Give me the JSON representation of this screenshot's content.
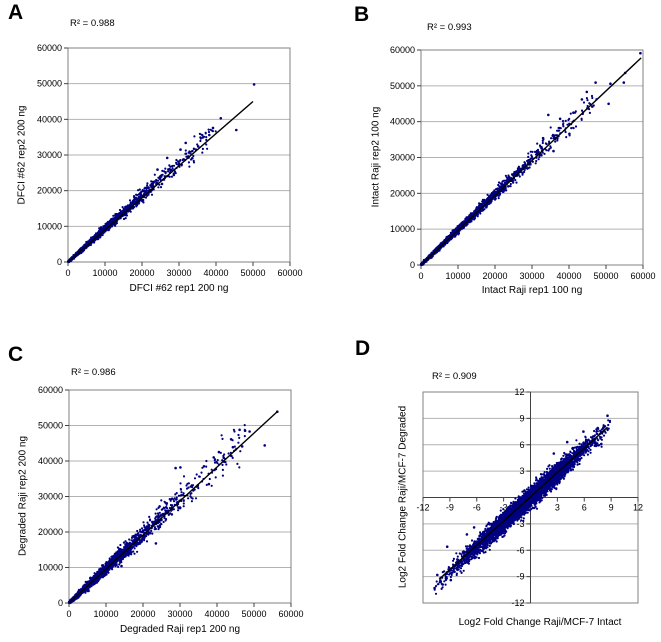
{
  "figure": {
    "background": "#ffffff",
    "point_color": "#000080",
    "grid_color": "#b2b2b2",
    "border_color": "#808080",
    "axis_color": "#404040",
    "trend_color": "#000000"
  },
  "panels": [
    {
      "letter": "A",
      "r2": "R² = 0.988",
      "x_title": "DFCI #62 rep1 200 ng",
      "y_title": "DFCI #62 rep2 200 ng"
    },
    {
      "letter": "B",
      "r2": "R² = 0.993",
      "x_title": "Intact Raji rep1 100 ng",
      "y_title": "Intact Raji rep2 100 ng"
    },
    {
      "letter": "C",
      "r2": "R² = 0.986",
      "x_title": "Degraded Raji rep1 200 ng",
      "y_title": "Degraded Raji rep2 200 ng"
    },
    {
      "letter": "D",
      "r2": "R² = 0.909",
      "x_title": "Log2 Fold Change Raji/MCF-7 Intact",
      "y_title": "Log2 Fold Change Raji/MCF-7 Degraded"
    }
  ],
  "chart_data": [
    {
      "panel": "A",
      "type": "scatter",
      "title": "R² = 0.988",
      "xlabel": "DFCI #62 rep1 200 ng",
      "ylabel": "DFCI #62 rep2 200 ng",
      "xlim": [
        0,
        60000
      ],
      "ylim": [
        0,
        60000
      ],
      "x_ticks": [
        0,
        10000,
        20000,
        30000,
        40000,
        50000,
        60000
      ],
      "y_ticks": [
        0,
        10000,
        20000,
        30000,
        40000,
        50000,
        60000
      ],
      "gridlines": "horizontal",
      "legend": false,
      "trendline": {
        "x1": 0,
        "y1": 0,
        "x2": 50000,
        "y2": 45000
      },
      "cloud": {
        "n": 3000,
        "seed": 11,
        "scale": 7500,
        "t_max": 40000,
        "slope": 0.93,
        "sd0": 120,
        "sd_k": 0.035,
        "x_jitter": 350
      },
      "outliers": [
        [
          50300,
          49800
        ],
        [
          45500,
          37000
        ],
        [
          41300,
          40300
        ],
        [
          39200,
          37600
        ],
        [
          38200,
          35600
        ],
        [
          36400,
          34900
        ],
        [
          35200,
          32400
        ],
        [
          33600,
          29100
        ],
        [
          31800,
          33400
        ],
        [
          30400,
          31500
        ],
        [
          28600,
          24400
        ],
        [
          26800,
          29200
        ],
        [
          25400,
          21900
        ],
        [
          24200,
          25900
        ]
      ]
    },
    {
      "panel": "B",
      "type": "scatter",
      "title": "R² = 0.993",
      "xlabel": "Intact Raji rep1 100 ng",
      "ylabel": "Intact Raji rep2 100 ng",
      "xlim": [
        0,
        60000
      ],
      "ylim": [
        0,
        60000
      ],
      "x_ticks": [
        0,
        10000,
        20000,
        30000,
        40000,
        50000,
        60000
      ],
      "y_ticks": [
        0,
        10000,
        20000,
        30000,
        40000,
        50000,
        60000
      ],
      "gridlines": "horizontal",
      "legend": false,
      "trendline": {
        "x1": 0,
        "y1": 0,
        "x2": 59500,
        "y2": 57800
      },
      "cloud": {
        "n": 3200,
        "seed": 23,
        "scale": 9000,
        "t_max": 47000,
        "slope": 0.985,
        "sd0": 130,
        "sd_k": 0.03,
        "x_jitter": 400
      },
      "outliers": [
        [
          59300,
          59100
        ],
        [
          55200,
          53600
        ],
        [
          54800,
          50900
        ],
        [
          51200,
          50600
        ],
        [
          50700,
          45000
        ],
        [
          47200,
          50900
        ],
        [
          46300,
          44200
        ],
        [
          44800,
          48300
        ],
        [
          43500,
          46200
        ],
        [
          41200,
          42500
        ],
        [
          40100,
          36600
        ],
        [
          37600,
          40800
        ],
        [
          35800,
          31800
        ],
        [
          34400,
          41900
        ],
        [
          33000,
          35400
        ]
      ]
    },
    {
      "panel": "C",
      "type": "scatter",
      "title": "R² = 0.986",
      "xlabel": "Degraded Raji rep1 200 ng",
      "ylabel": "Degraded Raji rep2 200 ng",
      "xlim": [
        0,
        60000
      ],
      "ylim": [
        0,
        60000
      ],
      "x_ticks": [
        0,
        10000,
        20000,
        30000,
        40000,
        50000,
        60000
      ],
      "y_ticks": [
        0,
        10000,
        20000,
        30000,
        40000,
        50000,
        60000
      ],
      "gridlines": "horizontal",
      "legend": false,
      "trendline": {
        "x1": 0,
        "y1": 0,
        "x2": 56300,
        "y2": 53900
      },
      "cloud": {
        "n": 3200,
        "seed": 37,
        "scale": 8500,
        "t_max": 48000,
        "slope": 0.97,
        "sd0": 170,
        "sd_k": 0.055,
        "x_jitter": 450
      },
      "outliers": [
        [
          56300,
          53900
        ],
        [
          52900,
          44400
        ],
        [
          48800,
          48300
        ],
        [
          47600,
          48500
        ],
        [
          46800,
          44100
        ],
        [
          46100,
          48800
        ],
        [
          44300,
          43900
        ],
        [
          43800,
          46100
        ],
        [
          41800,
          40900
        ],
        [
          40500,
          42500
        ],
        [
          39100,
          41000
        ],
        [
          37800,
          33500
        ],
        [
          36500,
          38500
        ],
        [
          30100,
          38200
        ],
        [
          28800,
          38000
        ],
        [
          24500,
          27200
        ],
        [
          23500,
          16800
        ],
        [
          14200,
          10400
        ]
      ]
    },
    {
      "panel": "D",
      "type": "scatter",
      "title": "R² = 0.909",
      "xlabel": "Log2 Fold Change Raji/MCF-7 Intact",
      "ylabel": "Log2 Fold Change Raji/MCF-7 Degraded",
      "xlim": [
        -12,
        12
      ],
      "ylim": [
        -12,
        12
      ],
      "axes": "centered",
      "x_ticks": [
        -12,
        -9,
        -6,
        -3,
        0,
        3,
        6,
        9,
        12
      ],
      "y_ticks": [
        12,
        9,
        6,
        3,
        -3,
        -6,
        -9,
        -12
      ],
      "gridlines": "horizontal",
      "legend": false,
      "trendline": {
        "x1": -10.2,
        "y1": -9.3,
        "x2": 8.6,
        "y2": 8.0
      },
      "cloud": {
        "n": 5200,
        "seed": 53,
        "mean": -0.6,
        "sd": 3.5,
        "t_min": -10.8,
        "t_max": 9.0,
        "slope": 0.93,
        "sd_y": 0.52
      },
      "outliers": [
        [
          8.6,
          9.3
        ],
        [
          8.3,
          8.1
        ],
        [
          7.9,
          6.1
        ],
        [
          7.5,
          7.9
        ],
        [
          6.8,
          6.0
        ],
        [
          5.9,
          7.5
        ],
        [
          4.1,
          6.3
        ],
        [
          2.6,
          5.0
        ],
        [
          -6.3,
          -3.4
        ],
        [
          -7.1,
          -4.2
        ],
        [
          -10.7,
          -10.3
        ],
        [
          -10.4,
          -8.8
        ],
        [
          -9.8,
          -9.9
        ],
        [
          -9.3,
          -5.6
        ],
        [
          -8.9,
          -9.4
        ]
      ]
    }
  ]
}
